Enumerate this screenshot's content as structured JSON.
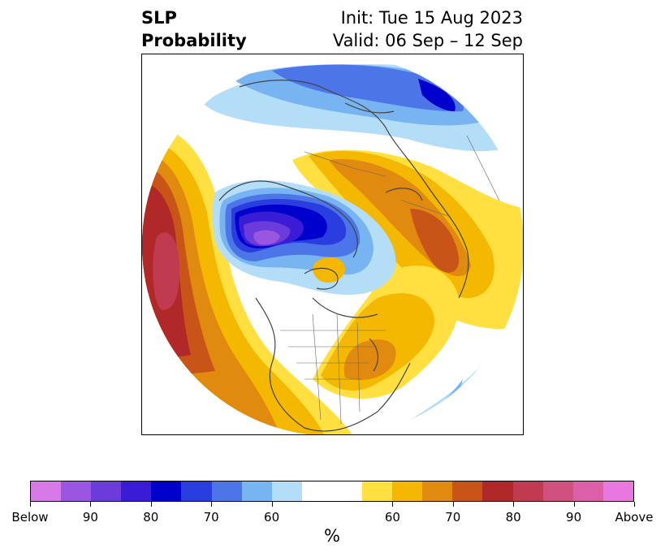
{
  "header": {
    "title_line1": "SLP",
    "title_line2": "Probability",
    "init_text": "Init: Tue 15 Aug 2023",
    "valid_text": "Valid: 06 Sep – 12 Sep"
  },
  "colorbar": {
    "unit_label": "%",
    "segments": [
      {
        "category": "below",
        "color": "#d77ae8"
      },
      {
        "category": "below-90",
        "color": "#9a56e0"
      },
      {
        "category": "below-85",
        "color": "#6c3bdc"
      },
      {
        "category": "below-80",
        "color": "#3a1cd6"
      },
      {
        "category": "below-75",
        "color": "#0000cc"
      },
      {
        "category": "below-70",
        "color": "#2a3ee0"
      },
      {
        "category": "below-65",
        "color": "#4c76e8"
      },
      {
        "category": "below-60",
        "color": "#78b4f2"
      },
      {
        "category": "below-55",
        "color": "#b4def8"
      },
      {
        "category": "neutral",
        "color": "#ffffff"
      },
      {
        "category": "above-55",
        "color": "#ffe040"
      },
      {
        "category": "above-60",
        "color": "#f4b800"
      },
      {
        "category": "above-65",
        "color": "#e08a10"
      },
      {
        "category": "above-70",
        "color": "#c85418"
      },
      {
        "category": "above-75",
        "color": "#b02828"
      },
      {
        "category": "above-80",
        "color": "#c03a50"
      },
      {
        "category": "above-85",
        "color": "#d05080"
      },
      {
        "category": "above-90",
        "color": "#dc60a8"
      },
      {
        "category": "above",
        "color": "#e878e0"
      }
    ],
    "ticks": [
      "Below",
      "90",
      "80",
      "70",
      "60",
      "60",
      "70",
      "80",
      "90",
      "Above"
    ]
  },
  "map": {
    "projection": "north-polar-stereographic",
    "variable": "sea level pressure tercile probability"
  }
}
